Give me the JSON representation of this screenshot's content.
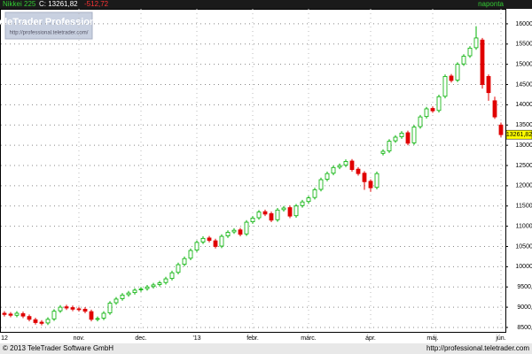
{
  "chart_data": {
    "type": "candlestick",
    "title": "Nikkei 225",
    "last_label": "C: 13261,82",
    "change": "-512,72",
    "frequency": "naponta",
    "last_value_label": "13261,82",
    "watermark_title": "TeleTrader Professional",
    "watermark_url": "http://professional.teletrader.com/",
    "copyright": "© 2013 TeleTrader Software GmbH",
    "footer_url": "http://professional.teletrader.com",
    "up_color": "#00b000",
    "down_color": "#e00000",
    "grid": true,
    "ylim": [
      8390,
      16370
    ],
    "yticks": [
      {
        "value": 8500,
        "label": "8500,00"
      },
      {
        "value": 9000,
        "label": "9000,00"
      },
      {
        "value": 9500,
        "label": "9500,00"
      },
      {
        "value": 10000,
        "label": "10000,00"
      },
      {
        "value": 10500,
        "label": "10500,00"
      },
      {
        "value": 11000,
        "label": "11000,00"
      },
      {
        "value": 11500,
        "label": "11500,00"
      },
      {
        "value": 12000,
        "label": "12000,00"
      },
      {
        "value": 12500,
        "label": "12500,00"
      },
      {
        "value": 13000,
        "label": "13000,00"
      },
      {
        "value": 13500,
        "label": "13500,00"
      },
      {
        "value": 14000,
        "label": "14000,00"
      },
      {
        "value": 14500,
        "label": "14500,00"
      },
      {
        "value": 15000,
        "label": "15000,00"
      },
      {
        "value": 15500,
        "label": "15500,00"
      },
      {
        "value": 16000,
        "label": "16000,00"
      }
    ],
    "categories": [
      "12",
      null,
      null,
      null,
      null,
      null,
      null,
      null,
      null,
      null,
      null,
      null,
      "nov.",
      null,
      null,
      null,
      null,
      null,
      null,
      null,
      null,
      null,
      "dec.",
      null,
      null,
      null,
      null,
      null,
      null,
      null,
      null,
      "'13",
      null,
      null,
      null,
      null,
      null,
      null,
      null,
      null,
      "febr.",
      null,
      null,
      null,
      null,
      null,
      null,
      null,
      null,
      "márc.",
      null,
      null,
      null,
      null,
      null,
      null,
      null,
      null,
      null,
      "ápr.",
      null,
      null,
      null,
      null,
      null,
      null,
      null,
      null,
      null,
      "máj.",
      null,
      null,
      null,
      null,
      null,
      null,
      null,
      null,
      null,
      null,
      "jún."
    ],
    "open": [
      8850,
      8830,
      8800,
      8840,
      8770,
      8690,
      8630,
      8610,
      8710,
      8910,
      9010,
      8990,
      8960,
      8950,
      8890,
      8700,
      8730,
      8860,
      9110,
      9210,
      9310,
      9360,
      9430,
      9460,
      9510,
      9560,
      9610,
      9710,
      9860,
      10060,
      10210,
      10410,
      10610,
      10710,
      10640,
      10510,
      10760,
      10860,
      10910,
      10810,
      11110,
      11210,
      11360,
      11310,
      11160,
      11410,
      11460,
      11260,
      11510,
      11610,
      11710,
      11910,
      12160,
      12310,
      12460,
      12510,
      12610,
      12410,
      12310,
      12110,
      11960,
      12800,
      12860,
      13110,
      13210,
      13310,
      13060,
      13460,
      13710,
      13910,
      13860,
      14210,
      14710,
      14610,
      15010,
      15210,
      15410,
      15600,
      14700,
      14100,
      13500
    ],
    "high": [
      8900,
      8880,
      8900,
      8890,
      8820,
      8740,
      8680,
      8750,
      8950,
      9050,
      9060,
      9040,
      9010,
      9000,
      8940,
      8770,
      8900,
      9150,
      9250,
      9350,
      9400,
      9470,
      9500,
      9550,
      9600,
      9650,
      9750,
      9900,
      10100,
      10250,
      10450,
      10650,
      10750,
      10760,
      10690,
      10800,
      10900,
      10950,
      10960,
      11150,
      11250,
      11400,
      11410,
      11360,
      11450,
      11500,
      11510,
      11550,
      11650,
      11750,
      11950,
      12200,
      12350,
      12500,
      12550,
      12650,
      12660,
      12460,
      12360,
      12160,
      12350,
      12900,
      13150,
      13250,
      13350,
      13360,
      13500,
      13750,
      13950,
      13960,
      14250,
      14750,
      14760,
      15050,
      15250,
      15450,
      15942,
      15650,
      14750,
      14200,
      13560
    ],
    "low": [
      8770,
      8750,
      8750,
      8730,
      8650,
      8570,
      8550,
      8560,
      8660,
      8860,
      8930,
      8900,
      8890,
      8850,
      8650,
      8650,
      8680,
      8810,
      9060,
      9160,
      9260,
      9310,
      9380,
      9410,
      9460,
      9510,
      9560,
      9660,
      9810,
      10010,
      10160,
      10360,
      10560,
      10600,
      10450,
      10460,
      10710,
      10810,
      10750,
      10760,
      11060,
      11160,
      11250,
      11100,
      11110,
      11360,
      11200,
      11210,
      11460,
      11560,
      11660,
      11860,
      12110,
      12260,
      12410,
      12460,
      12350,
      12250,
      11900,
      11850,
      11910,
      12750,
      12810,
      13060,
      13160,
      13000,
      13010,
      13410,
      13660,
      13800,
      13810,
      14160,
      14550,
      14560,
      14960,
      15160,
      15360,
      14400,
      14100,
      13650,
      13200
    ],
    "close": [
      8820,
      8800,
      8850,
      8780,
      8700,
      8620,
      8600,
      8700,
      8900,
      9000,
      8980,
      8950,
      8940,
      8900,
      8700,
      8720,
      8850,
      9100,
      9200,
      9300,
      9350,
      9420,
      9450,
      9500,
      9550,
      9600,
      9700,
      9850,
      10050,
      10200,
      10400,
      10600,
      10700,
      10650,
      10500,
      10750,
      10850,
      10900,
      10800,
      11100,
      11200,
      11350,
      11300,
      11150,
      11400,
      11450,
      11250,
      11500,
      11600,
      11700,
      11900,
      12150,
      12300,
      12450,
      12500,
      12600,
      12400,
      12300,
      12100,
      11950,
      12300,
      12850,
      13100,
      13200,
      13300,
      13050,
      13450,
      13700,
      13900,
      13850,
      14200,
      14700,
      14600,
      15000,
      15200,
      15400,
      15650,
      14500,
      14300,
      13700,
      13261.82
    ]
  }
}
